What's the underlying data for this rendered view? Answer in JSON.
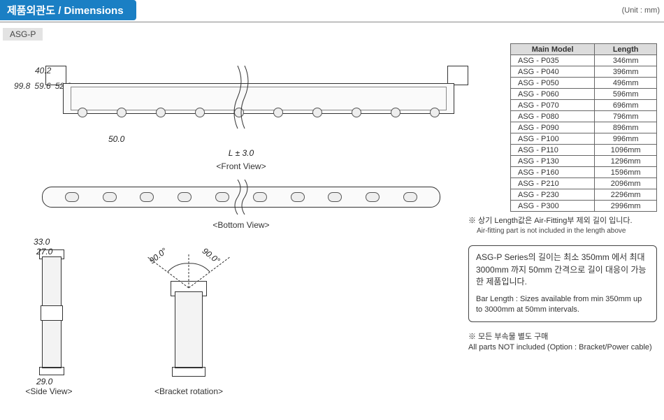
{
  "header": {
    "title_ko": "제품외관도",
    "title_en": "Dimensions",
    "unit": "(Unit : mm)"
  },
  "product_label": "ASG-P",
  "front_view": {
    "caption": "<Front View>",
    "v_dims_outer": "99.8",
    "v_dims_mid": "59.6",
    "v_dims_inner": "52.3",
    "v_dims_top": "40.2",
    "pitch": "50.0",
    "length": "L ± 3.0"
  },
  "bottom_view": {
    "caption": "<Bottom View>"
  },
  "side_view": {
    "caption": "<Side View>",
    "width_top": "33.0",
    "width_body": "27.0",
    "width_bottom": "29.0"
  },
  "bracket_rotation": {
    "caption": "<Bracket rotation>",
    "angle_left": "90.0°",
    "angle_right": "90.0°"
  },
  "spec_table": {
    "headers": [
      "Main Model",
      "Length"
    ],
    "rows": [
      [
        "ASG - P035",
        "346mm"
      ],
      [
        "ASG - P040",
        "396mm"
      ],
      [
        "ASG - P050",
        "496mm"
      ],
      [
        "ASG - P060",
        "596mm"
      ],
      [
        "ASG - P070",
        "696mm"
      ],
      [
        "ASG - P080",
        "796mm"
      ],
      [
        "ASG - P090",
        "896mm"
      ],
      [
        "ASG - P100",
        "996mm"
      ],
      [
        "ASG - P110",
        "1096mm"
      ],
      [
        "ASG - P130",
        "1296mm"
      ],
      [
        "ASG - P160",
        "1596mm"
      ],
      [
        "ASG - P210",
        "2096mm"
      ],
      [
        "ASG - P230",
        "2296mm"
      ],
      [
        "ASG - P300",
        "2996mm"
      ]
    ]
  },
  "note1": {
    "ko": "※ 상기 Length값은 Air-Fitting부 제외 길이 입니다.",
    "en": "Air-fitting part is not included in the length above"
  },
  "info_box": {
    "ko": "ASG-P Series의 길이는 최소 350mm 에서 최대 3000mm 까지 50mm 간격으로 길이 대응이 가능한 제품입니다.",
    "en": "Bar Length : Sizes available from min 350mm up to 3000mm at 50mm intervals."
  },
  "foot_note": {
    "ko": "※ 모든 부속물 별도 구매",
    "en": "All parts NOT included (Option : Bracket/Power cable)"
  },
  "colors": {
    "title_bg": "#1a7fc4",
    "title_fg": "#ffffff",
    "label_bg": "#e3e3e3",
    "table_header_bg": "#dcdcdc",
    "border": "#666666"
  }
}
